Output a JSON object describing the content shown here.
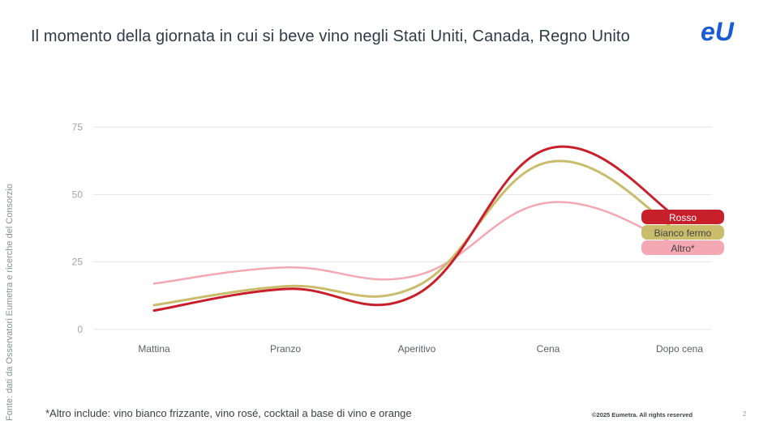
{
  "page": {
    "title": "Il momento della giornata in cui si beve vino negli Stati Uniti, Canada, Regno Unito",
    "logo_text": "eU",
    "source_note": "Fonte: dati da Osservatori Eumetra e ricerche del Consorzio",
    "footnote": "*Altro include: vino bianco frizzante, vino rosé, cocktail a base di vino e orange",
    "copyright": "©2025 Eumetra. All rights reserved",
    "page_number": "2"
  },
  "colors": {
    "logo": "#1a5bd6",
    "gridline": "#e2e3e5",
    "rosso": "#c8202b",
    "bianco": "#c9bd6c",
    "altro": "#f3a8b4"
  },
  "chart_data": {
    "type": "line",
    "title": "Il momento della giornata in cui si beve vino negli Stati Uniti, Canada, Regno Unito",
    "xlabel": "",
    "ylabel": "",
    "categories": [
      "Mattina",
      "Pranzo",
      "Aperitivo",
      "Cena",
      "Dopo cena"
    ],
    "ylim": [
      0,
      75
    ],
    "yticks": [
      0,
      25,
      50,
      75
    ],
    "grid": true,
    "legend_position": "right, at line ends",
    "series": [
      {
        "name": "Altro*",
        "color": "#f3a8b4",
        "values": [
          17,
          23,
          20,
          47,
          31
        ]
      },
      {
        "name": "Bianco fermo",
        "color": "#c9bd6c",
        "values": [
          9,
          16,
          16,
          62,
          36
        ]
      },
      {
        "name": "Rosso",
        "color": "#c8202b",
        "values": [
          7,
          15,
          13,
          67,
          41
        ]
      }
    ]
  }
}
